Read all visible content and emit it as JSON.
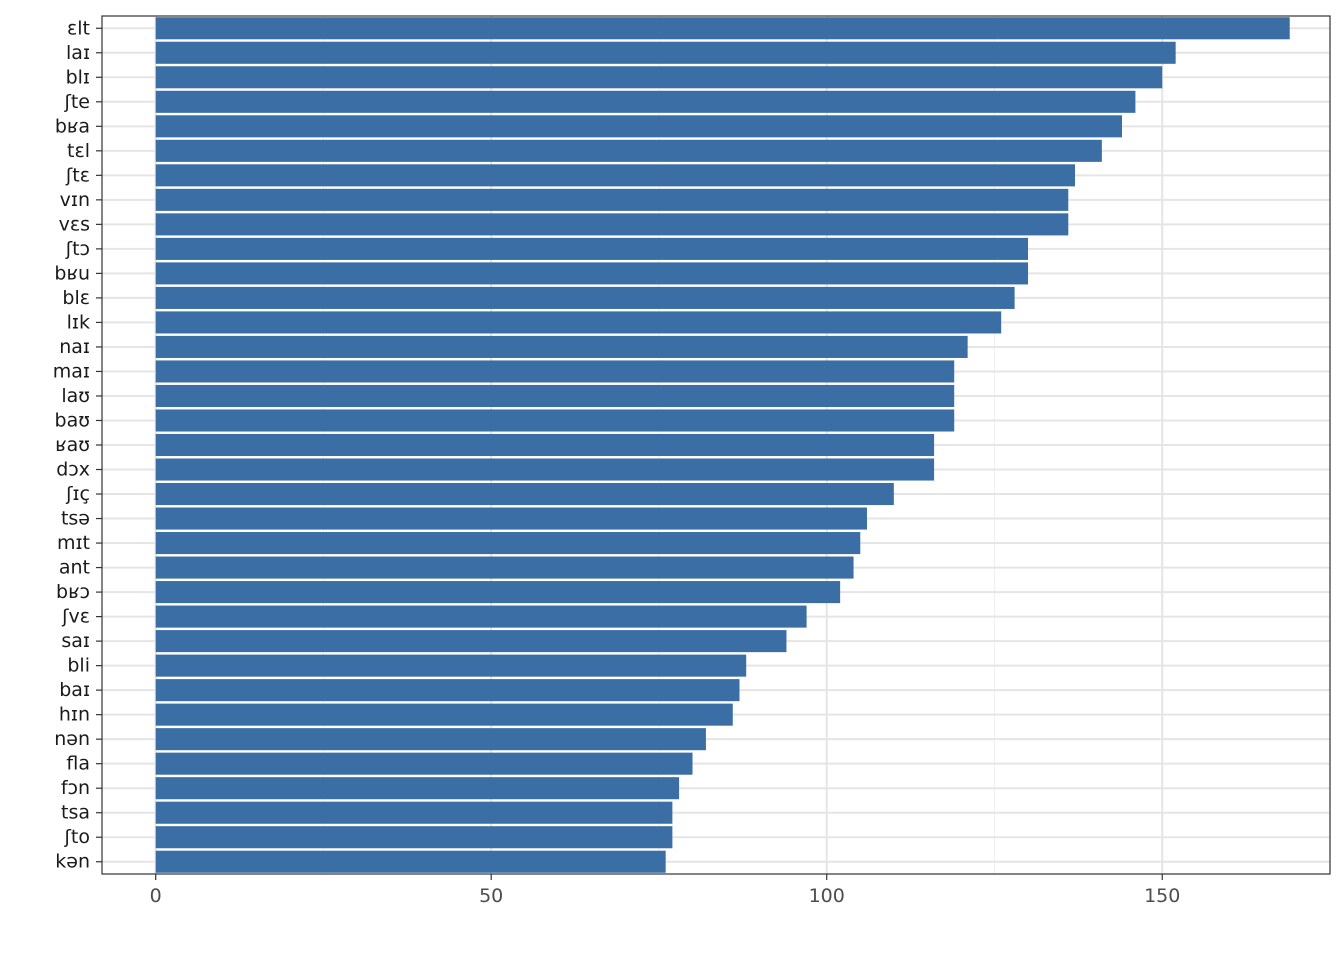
{
  "chart_data": {
    "type": "bar",
    "orientation": "horizontal",
    "title": "",
    "xlabel": "",
    "ylabel": "",
    "categories": [
      "ɛlt",
      "laɪ",
      "blɪ",
      "ʃte",
      "bʁa",
      "tɛl",
      "ʃtɛ",
      "vɪn",
      "vɛs",
      "ʃtɔ",
      "bʁu",
      "blɛ",
      "lɪk",
      "naɪ",
      "maɪ",
      "laʊ",
      "baʊ",
      "ʁaʊ",
      "dɔx",
      "ʃɪç",
      "tsə",
      "mɪt",
      "ant",
      "bʁɔ",
      "ʃvɛ",
      "saɪ",
      "bli",
      "baɪ",
      "hɪn",
      "nən",
      "fla",
      "fɔn",
      "tsa",
      "ʃto",
      "kən"
    ],
    "values": [
      169,
      152,
      150,
      146,
      144,
      141,
      137,
      136,
      136,
      130,
      130,
      128,
      126,
      121,
      119,
      119,
      119,
      116,
      116,
      110,
      106,
      105,
      104,
      102,
      97,
      94,
      88,
      87,
      86,
      82,
      80,
      78,
      77,
      77,
      76
    ],
    "xlim": [
      -8,
      175
    ],
    "x_ticks": [
      0,
      50,
      100,
      150
    ],
    "grid": true,
    "legend": "none",
    "colors": {
      "bar": "#3A6EA5",
      "grid_major": "#E5E5E5",
      "grid_minor": "#F0F0F0",
      "panel_border": "#333333",
      "tick_label": "#4D4D4D",
      "category_label": "#1A1A1A"
    }
  }
}
